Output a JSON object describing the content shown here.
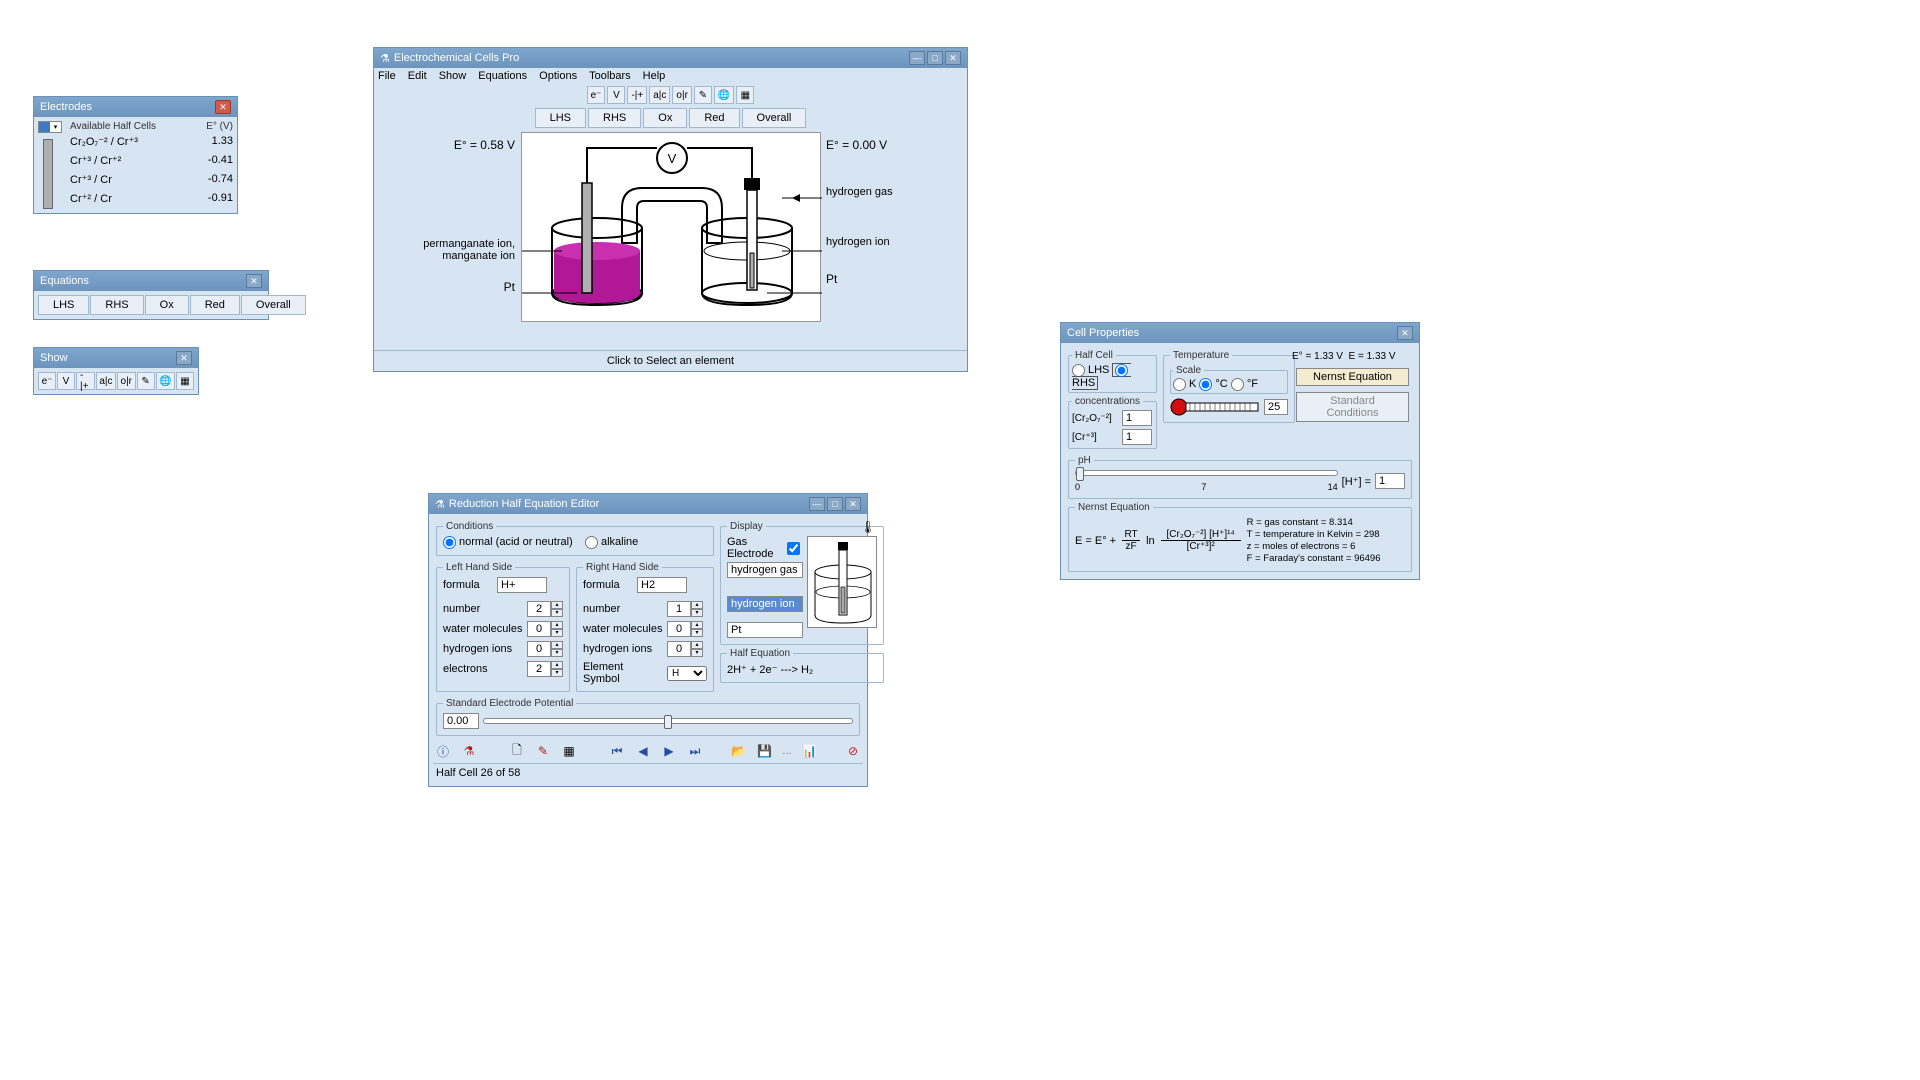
{
  "electrodes": {
    "title": "Electrodes",
    "col1": "Available Half Cells",
    "col2": "E° (V)",
    "rows": [
      {
        "cell": "Cr₂O₇⁻² / Cr⁺³",
        "e": "1.33"
      },
      {
        "cell": "Cr⁺³ / Cr⁺²",
        "e": "-0.41"
      },
      {
        "cell": "Cr⁺³ / Cr",
        "e": "-0.74"
      },
      {
        "cell": "Cr⁺² / Cr",
        "e": "-0.91"
      }
    ]
  },
  "equations": {
    "title": "Equations",
    "tabs": [
      "LHS",
      "RHS",
      "Ox",
      "Red",
      "Overall"
    ]
  },
  "show": {
    "title": "Show",
    "btns": [
      "e⁻",
      "V",
      "-|+",
      "a|c",
      "o|r",
      "✎",
      "🌐",
      "▦"
    ]
  },
  "main": {
    "title": "Electrochemical Cells Pro",
    "menu": [
      "File",
      "Edit",
      "Show",
      "Equations",
      "Options",
      "Toolbars",
      "Help"
    ],
    "toolbar": [
      "e⁻",
      "V",
      "-|+",
      "a|c",
      "o|r",
      "✎",
      "🌐",
      "▦"
    ],
    "tabs": [
      "LHS",
      "RHS",
      "Ox",
      "Red",
      "Overall"
    ],
    "left_e": "E° = 0.58 V",
    "right_e": "E° = 0.00 V",
    "labels": {
      "l1": "permanganate ion,",
      "l2": "manganate ion",
      "l3": "Pt",
      "r1": "hydrogen gas",
      "r2": "hydrogen ion",
      "r3": "Pt"
    },
    "status": "Click to Select an element",
    "colors": {
      "solution_left": "#b01898",
      "solution_right": "#ffffff",
      "electrode": "#b0b0b0"
    }
  },
  "editor": {
    "title": "Reduction Half Equation Editor",
    "conditions": {
      "legend": "Conditions",
      "opt1": "normal (acid or neutral)",
      "opt2": "alkaline"
    },
    "lhs": {
      "legend": "Left Hand Side",
      "formula_label": "formula",
      "formula": "H+",
      "number_label": "number",
      "number": "2",
      "water_label": "water molecules",
      "water": "0",
      "h_label": "hydrogen ions",
      "h": "0",
      "e_label": "electrons",
      "e": "2"
    },
    "rhs": {
      "legend": "Right Hand Side",
      "formula_label": "formula",
      "formula": "H2",
      "number_label": "number",
      "number": "1",
      "water_label": "water molecules",
      "water": "0",
      "h_label": "hydrogen ions",
      "h": "0",
      "sym_label": "Element Symbol",
      "sym": "H"
    },
    "display": {
      "legend": "Display",
      "gas_label": "Gas Electrode",
      "gas_check": true,
      "gas": "hydrogen gas",
      "ion": "hydrogen ion",
      "metal": "Pt"
    },
    "half_eq": {
      "legend": "Half Equation",
      "eq": "2H⁺ + 2e⁻ ---> H₂"
    },
    "sep": {
      "legend": "Standard Electrode Potential",
      "value": "0.00"
    },
    "status": "Half Cell 26 of 58"
  },
  "props": {
    "title": "Cell Properties",
    "halfcell": {
      "legend": "Half Cell",
      "opt1": "LHS",
      "opt2": "RHS"
    },
    "conc": {
      "legend": "concentrations",
      "sp1": "[Cr₂O₇⁻²]",
      "v1": "1",
      "sp2": "[Cr⁺³]",
      "v2": "1"
    },
    "temp": {
      "legend": "Temperature",
      "scale_legend": "Scale",
      "opt1": "K",
      "opt2": "°C",
      "opt3": "°F",
      "value": "25"
    },
    "e0": "E° = 1.33 V",
    "e": "E = 1.33 V",
    "nernst_btn": "Nernst Equation",
    "std_btn": "Standard Conditions",
    "ph": {
      "legend": "pH",
      "h_label": "[H⁺] =",
      "h_val": "1",
      "ticks": [
        "0",
        "7",
        "14"
      ]
    },
    "nernst": {
      "legend": "Nernst Equation",
      "eq_left": "E = E° +",
      "rt": "RT",
      "zf": "zF",
      "ln": "ln",
      "num": "[Cr₂O₇⁻²] [H⁺]¹⁴",
      "den": "[Cr⁺³]²",
      "r": "R = gas constant = 8.314",
      "t": "T = temperature in Kelvin = 298",
      "z": "z = moles of electrons = 6",
      "f": "F = Faraday's constant = 96496"
    }
  }
}
